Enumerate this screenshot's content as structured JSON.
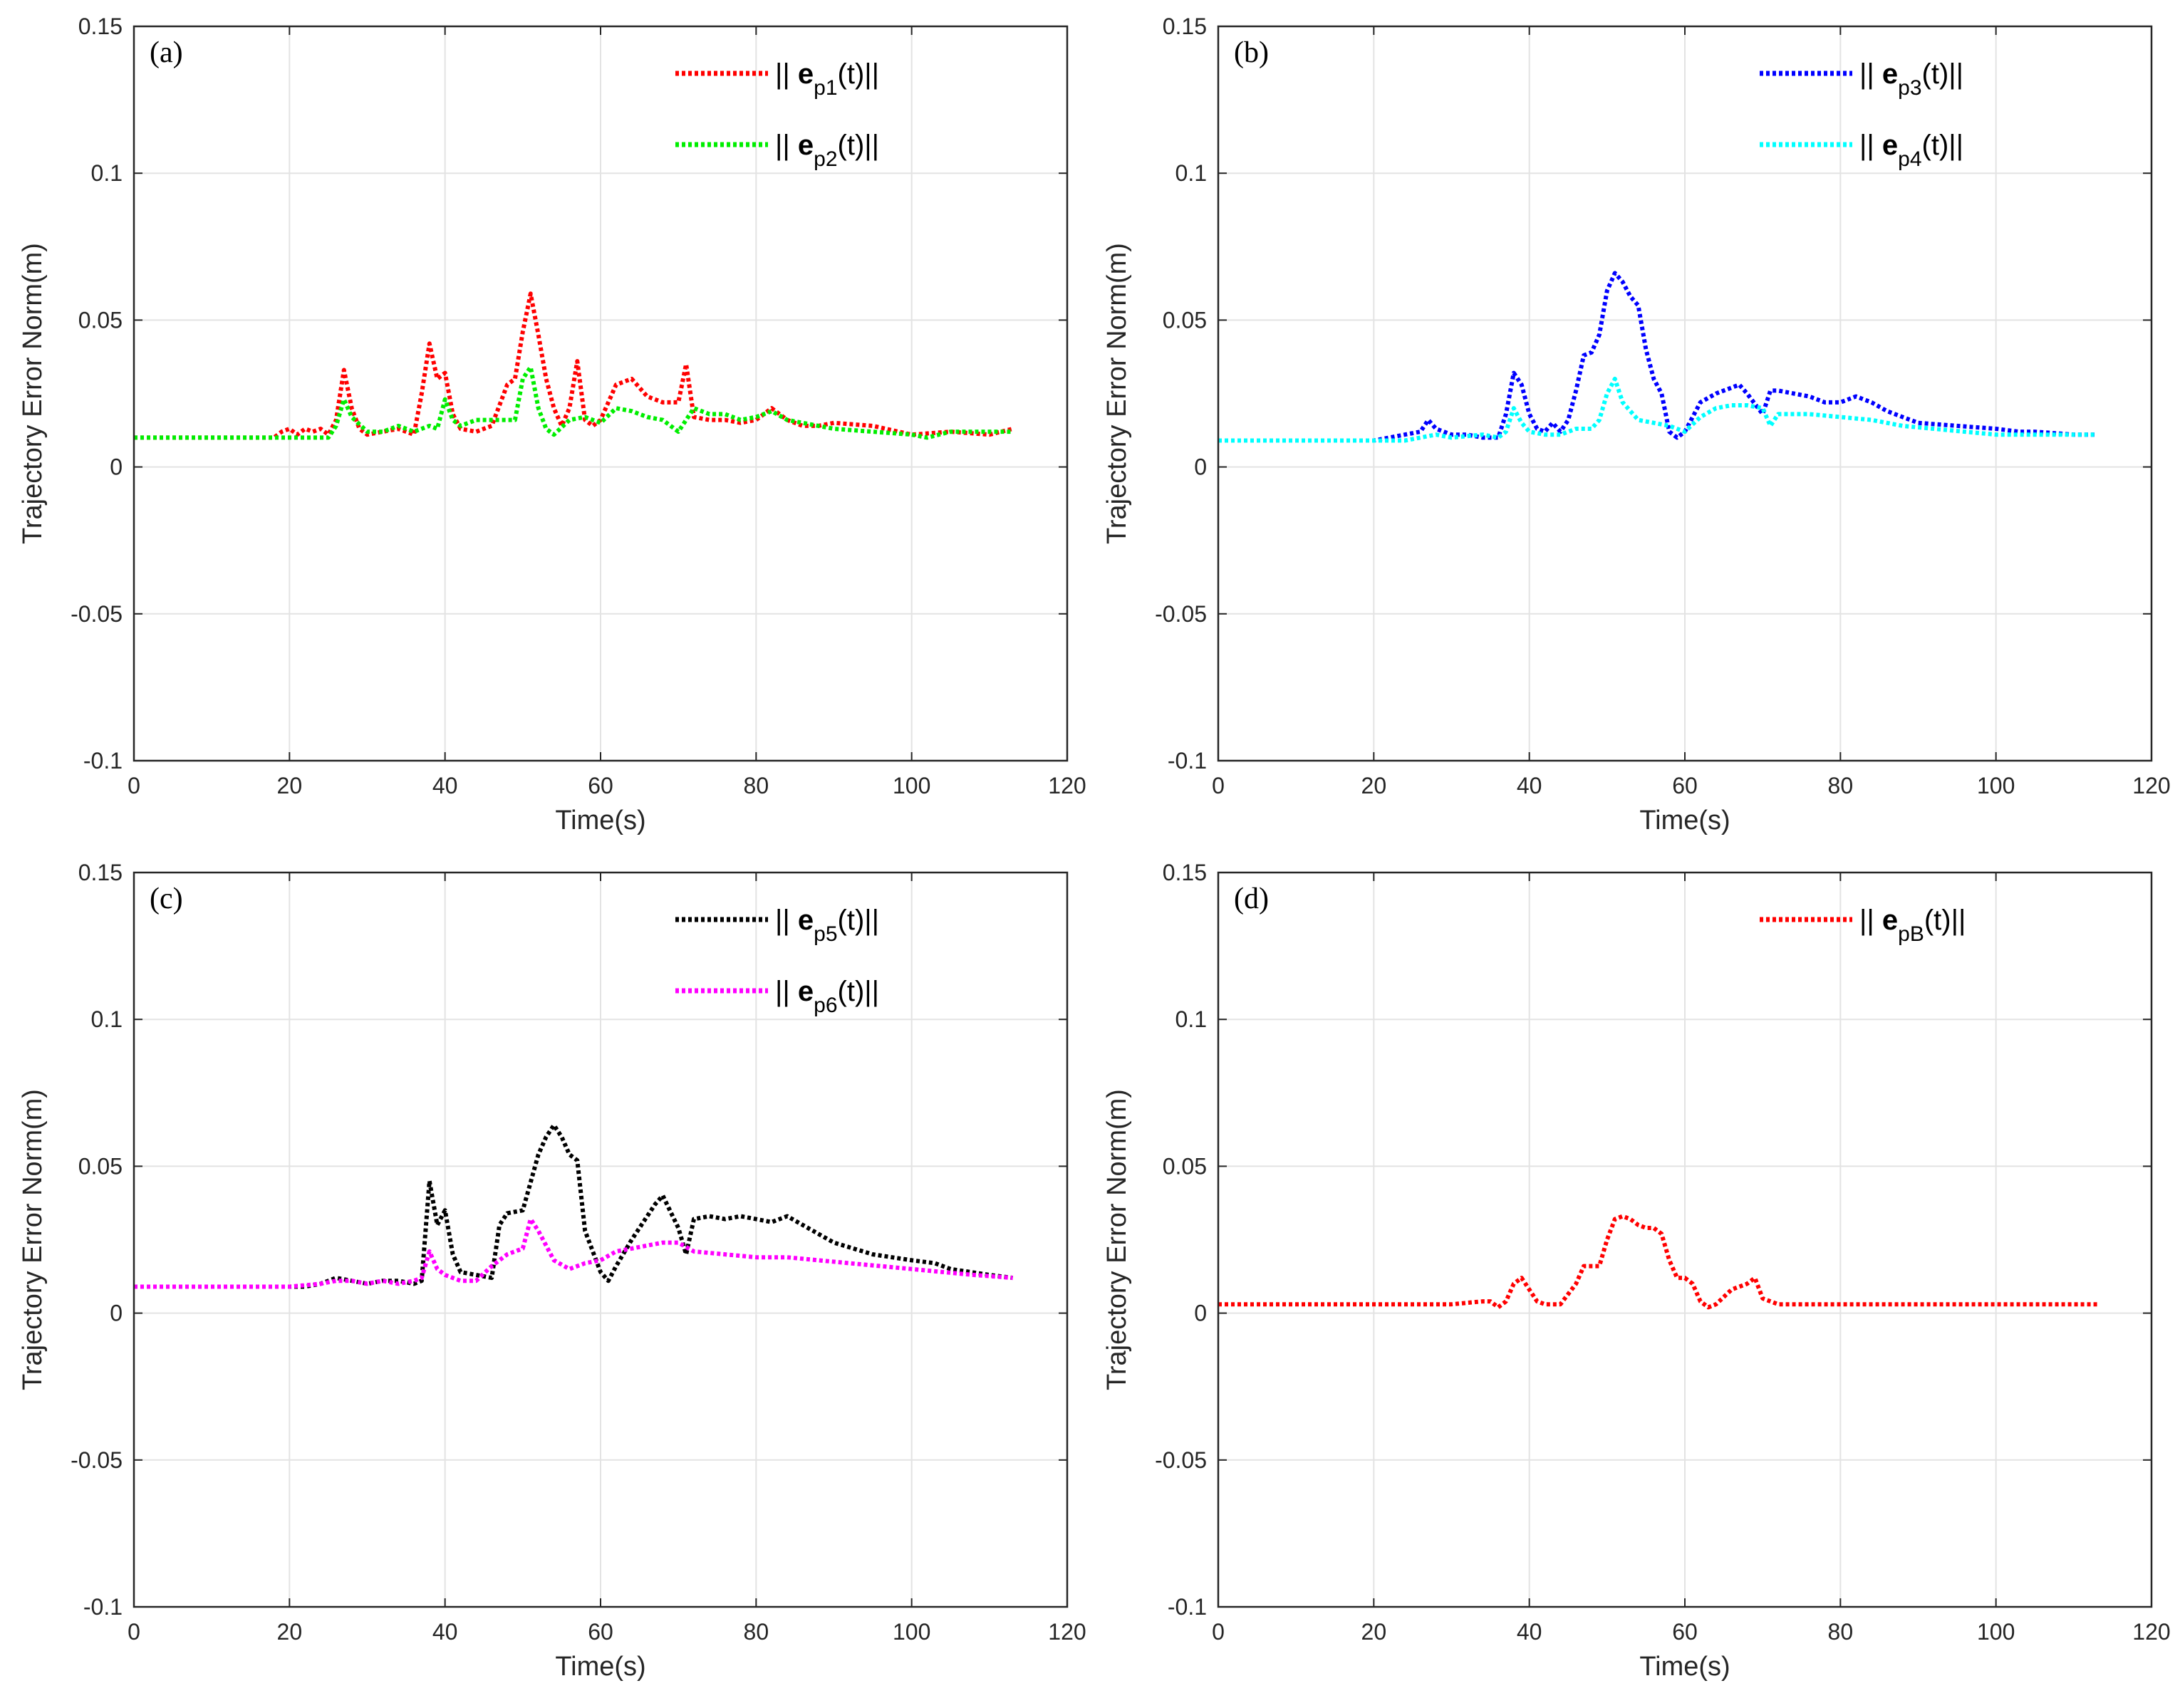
{
  "chart_data": [
    {
      "type": "line",
      "panel_label": "(a)",
      "xlabel": "Time(s)",
      "ylabel": "Trajectory Error Norm(m)",
      "xlim": [
        0,
        120
      ],
      "ylim": [
        -0.1,
        0.15
      ],
      "xticks": [
        0,
        20,
        40,
        60,
        80,
        100,
        120
      ],
      "yticks": [
        -0.1,
        -0.05,
        0,
        0.05,
        0.1,
        0.15
      ],
      "xtick_labels": [
        "0",
        "20",
        "40",
        "60",
        "80",
        "100",
        "120"
      ],
      "ytick_labels": [
        "-0.1",
        "-0.05",
        "0",
        "0.05",
        "0.1",
        "0.15"
      ],
      "grid": true,
      "legend_position": "top-right",
      "series": [
        {
          "name": "p1",
          "legend_prefix": "|| ",
          "legend_bold": "e",
          "legend_sub": "p1",
          "legend_suffix": "(t)||",
          "color": "#ff0000",
          "style": "dotted",
          "x": [
            0,
            10,
            18,
            19,
            20,
            21,
            22,
            23,
            24,
            25,
            26,
            27,
            28,
            29,
            30,
            32,
            34,
            36,
            37,
            38,
            39,
            40,
            41,
            42,
            44,
            46,
            48,
            49,
            50,
            51,
            52,
            53,
            54,
            55,
            56,
            57,
            58,
            59,
            60,
            62,
            64,
            66,
            68,
            70,
            71,
            72,
            74,
            76,
            78,
            80,
            82,
            84,
            86,
            88,
            90,
            95,
            100,
            105,
            110,
            113
          ],
          "y": [
            0.01,
            0.01,
            0.01,
            0.012,
            0.013,
            0.011,
            0.013,
            0.012,
            0.013,
            0.011,
            0.016,
            0.033,
            0.02,
            0.013,
            0.011,
            0.012,
            0.013,
            0.011,
            0.025,
            0.042,
            0.03,
            0.032,
            0.018,
            0.013,
            0.012,
            0.014,
            0.028,
            0.03,
            0.046,
            0.059,
            0.045,
            0.03,
            0.02,
            0.014,
            0.02,
            0.036,
            0.016,
            0.014,
            0.016,
            0.028,
            0.03,
            0.024,
            0.022,
            0.022,
            0.035,
            0.017,
            0.016,
            0.016,
            0.015,
            0.016,
            0.02,
            0.016,
            0.014,
            0.014,
            0.015,
            0.014,
            0.011,
            0.012,
            0.011,
            0.013
          ]
        },
        {
          "name": "p2",
          "legend_prefix": "|| ",
          "legend_bold": "e",
          "legend_sub": "p2",
          "legend_suffix": "(t)||",
          "color": "#00ee00",
          "style": "dotted",
          "x": [
            0,
            10,
            20,
            25,
            26,
            27,
            28,
            30,
            32,
            34,
            36,
            38,
            39,
            40,
            41,
            42,
            44,
            46,
            48,
            49,
            50,
            51,
            52,
            53,
            54,
            56,
            58,
            60,
            62,
            64,
            66,
            68,
            70,
            72,
            74,
            76,
            78,
            80,
            82,
            84,
            86,
            88,
            90,
            95,
            100,
            102,
            105,
            110,
            113
          ],
          "y": [
            0.01,
            0.01,
            0.01,
            0.01,
            0.014,
            0.023,
            0.017,
            0.012,
            0.012,
            0.014,
            0.012,
            0.014,
            0.013,
            0.023,
            0.016,
            0.014,
            0.016,
            0.016,
            0.016,
            0.016,
            0.03,
            0.034,
            0.02,
            0.013,
            0.011,
            0.016,
            0.017,
            0.015,
            0.02,
            0.019,
            0.017,
            0.016,
            0.012,
            0.02,
            0.018,
            0.018,
            0.016,
            0.017,
            0.019,
            0.016,
            0.015,
            0.014,
            0.013,
            0.012,
            0.011,
            0.01,
            0.012,
            0.012,
            0.012
          ]
        }
      ]
    },
    {
      "type": "line",
      "panel_label": "(b)",
      "xlabel": "Time(s)",
      "ylabel": "Trajectory Error Norm(m)",
      "xlim": [
        0,
        120
      ],
      "ylim": [
        -0.1,
        0.15
      ],
      "xticks": [
        0,
        20,
        40,
        60,
        80,
        100,
        120
      ],
      "yticks": [
        -0.1,
        -0.05,
        0,
        0.05,
        0.1,
        0.15
      ],
      "xtick_labels": [
        "0",
        "20",
        "40",
        "60",
        "80",
        "100",
        "120"
      ],
      "ytick_labels": [
        "-0.1",
        "-0.05",
        "0",
        "0.05",
        "0.1",
        "0.15"
      ],
      "grid": true,
      "legend_position": "top-right",
      "series": [
        {
          "name": "p3",
          "legend_prefix": "|| ",
          "legend_bold": "e",
          "legend_sub": "p3",
          "legend_suffix": "(t)||",
          "color": "#0000ff",
          "style": "dotted",
          "x": [
            0,
            10,
            20,
            22,
            24,
            26,
            27,
            28,
            30,
            32,
            34,
            36,
            37,
            38,
            39,
            40,
            41,
            42,
            43,
            44,
            45,
            46,
            47,
            48,
            49,
            50,
            51,
            52,
            53,
            54,
            55,
            56,
            57,
            58,
            59,
            60,
            62,
            64,
            66,
            67,
            68,
            70,
            71,
            72,
            74,
            76,
            78,
            80,
            82,
            84,
            86,
            88,
            90,
            95,
            100,
            103,
            105,
            110,
            113
          ],
          "y": [
            0.009,
            0.009,
            0.009,
            0.01,
            0.011,
            0.012,
            0.016,
            0.013,
            0.011,
            0.011,
            0.01,
            0.01,
            0.018,
            0.032,
            0.028,
            0.018,
            0.013,
            0.012,
            0.015,
            0.012,
            0.016,
            0.026,
            0.038,
            0.039,
            0.045,
            0.06,
            0.066,
            0.063,
            0.058,
            0.055,
            0.04,
            0.03,
            0.025,
            0.012,
            0.01,
            0.012,
            0.022,
            0.025,
            0.027,
            0.028,
            0.025,
            0.018,
            0.026,
            0.026,
            0.025,
            0.024,
            0.022,
            0.022,
            0.024,
            0.022,
            0.019,
            0.017,
            0.015,
            0.014,
            0.013,
            0.012,
            0.012,
            0.011,
            0.011
          ]
        },
        {
          "name": "p4",
          "legend_prefix": "|| ",
          "legend_bold": "e",
          "legend_sub": "p4",
          "legend_suffix": "(t)||",
          "color": "#00ffff",
          "style": "dotted",
          "x": [
            0,
            10,
            20,
            24,
            26,
            28,
            30,
            34,
            36,
            37,
            38,
            39,
            40,
            42,
            44,
            46,
            48,
            49,
            50,
            51,
            52,
            54,
            56,
            58,
            60,
            62,
            64,
            66,
            68,
            70,
            71,
            72,
            76,
            80,
            84,
            88,
            92,
            96,
            100,
            104,
            108,
            113
          ],
          "y": [
            0.009,
            0.009,
            0.009,
            0.009,
            0.01,
            0.011,
            0.01,
            0.011,
            0.01,
            0.012,
            0.02,
            0.015,
            0.012,
            0.011,
            0.011,
            0.013,
            0.013,
            0.016,
            0.025,
            0.03,
            0.022,
            0.016,
            0.015,
            0.014,
            0.012,
            0.017,
            0.02,
            0.021,
            0.021,
            0.02,
            0.014,
            0.018,
            0.018,
            0.017,
            0.016,
            0.014,
            0.013,
            0.012,
            0.011,
            0.011,
            0.011,
            0.011
          ]
        }
      ]
    },
    {
      "type": "line",
      "panel_label": "(c)",
      "xlabel": "Time(s)",
      "ylabel": "Trajectory Error Norm(m)",
      "xlim": [
        0,
        120
      ],
      "ylim": [
        -0.1,
        0.15
      ],
      "xticks": [
        0,
        20,
        40,
        60,
        80,
        100,
        120
      ],
      "yticks": [
        -0.1,
        -0.05,
        0,
        0.05,
        0.1,
        0.15
      ],
      "xtick_labels": [
        "0",
        "20",
        "40",
        "60",
        "80",
        "100",
        "120"
      ],
      "ytick_labels": [
        "-0.1",
        "-0.05",
        "0",
        "0.05",
        "0.1",
        "0.15"
      ],
      "grid": true,
      "legend_position": "top-right",
      "series": [
        {
          "name": "p5",
          "legend_prefix": "|| ",
          "legend_bold": "e",
          "legend_sub": "p5",
          "legend_suffix": "(t)||",
          "color": "#000000",
          "style": "dotted",
          "x": [
            0,
            10,
            20,
            22,
            24,
            26,
            28,
            30,
            32,
            34,
            36,
            37,
            38,
            39,
            40,
            41,
            42,
            44,
            46,
            47,
            48,
            50,
            52,
            53,
            54,
            55,
            56,
            57,
            58,
            60,
            61,
            62,
            64,
            66,
            67,
            68,
            70,
            71,
            72,
            74,
            76,
            78,
            80,
            82,
            84,
            86,
            88,
            90,
            95,
            100,
            103,
            105,
            110,
            113
          ],
          "y": [
            0.009,
            0.009,
            0.009,
            0.009,
            0.01,
            0.012,
            0.011,
            0.01,
            0.011,
            0.011,
            0.01,
            0.011,
            0.045,
            0.03,
            0.035,
            0.02,
            0.014,
            0.013,
            0.012,
            0.03,
            0.034,
            0.035,
            0.054,
            0.06,
            0.064,
            0.06,
            0.054,
            0.052,
            0.028,
            0.014,
            0.011,
            0.016,
            0.025,
            0.033,
            0.037,
            0.04,
            0.029,
            0.02,
            0.032,
            0.033,
            0.032,
            0.033,
            0.032,
            0.031,
            0.033,
            0.03,
            0.027,
            0.024,
            0.02,
            0.018,
            0.017,
            0.015,
            0.013,
            0.012
          ]
        },
        {
          "name": "p6",
          "legend_prefix": "|| ",
          "legend_bold": "e",
          "legend_sub": "p6",
          "legend_suffix": "(t)||",
          "color": "#ff00ff",
          "style": "dotted",
          "x": [
            0,
            10,
            20,
            24,
            26,
            28,
            30,
            32,
            34,
            36,
            37,
            38,
            39,
            40,
            42,
            44,
            46,
            48,
            50,
            51,
            52,
            54,
            56,
            58,
            60,
            62,
            64,
            66,
            68,
            70,
            72,
            76,
            80,
            84,
            88,
            92,
            96,
            100,
            104,
            108,
            113
          ],
          "y": [
            0.009,
            0.009,
            0.009,
            0.01,
            0.011,
            0.011,
            0.01,
            0.011,
            0.01,
            0.011,
            0.012,
            0.021,
            0.015,
            0.013,
            0.011,
            0.011,
            0.016,
            0.02,
            0.022,
            0.032,
            0.028,
            0.018,
            0.015,
            0.017,
            0.018,
            0.021,
            0.022,
            0.023,
            0.024,
            0.024,
            0.021,
            0.02,
            0.019,
            0.019,
            0.018,
            0.017,
            0.016,
            0.015,
            0.014,
            0.013,
            0.012
          ]
        }
      ]
    },
    {
      "type": "line",
      "panel_label": "(d)",
      "xlabel": "Time(s)",
      "ylabel": "Trajectory Error Norm(m)",
      "xlim": [
        0,
        120
      ],
      "ylim": [
        -0.1,
        0.15
      ],
      "xticks": [
        0,
        20,
        40,
        60,
        80,
        100,
        120
      ],
      "yticks": [
        -0.1,
        -0.05,
        0,
        0.05,
        0.1,
        0.15
      ],
      "xtick_labels": [
        "0",
        "20",
        "40",
        "60",
        "80",
        "100",
        "120"
      ],
      "ytick_labels": [
        "-0.1",
        "-0.05",
        "0",
        "0.05",
        "0.1",
        "0.15"
      ],
      "grid": true,
      "legend_position": "top-right",
      "series": [
        {
          "name": "pB",
          "legend_prefix": "|| ",
          "legend_bold": "e",
          "legend_sub": "pB",
          "legend_suffix": "(t)||",
          "color": "#ff0000",
          "style": "dotted",
          "x": [
            0,
            10,
            20,
            30,
            34,
            35,
            36,
            37,
            38,
            39,
            40,
            41,
            42,
            44,
            46,
            47,
            48,
            49,
            50,
            51,
            52,
            53,
            54,
            55,
            56,
            57,
            58,
            59,
            60,
            61,
            62,
            63,
            64,
            66,
            68,
            69,
            70,
            71,
            72,
            75,
            80,
            90,
            100,
            110,
            113
          ],
          "y": [
            0.003,
            0.003,
            0.003,
            0.003,
            0.004,
            0.004,
            0.002,
            0.004,
            0.01,
            0.012,
            0.008,
            0.004,
            0.003,
            0.003,
            0.01,
            0.016,
            0.016,
            0.016,
            0.025,
            0.032,
            0.033,
            0.032,
            0.03,
            0.029,
            0.029,
            0.027,
            0.018,
            0.012,
            0.012,
            0.01,
            0.004,
            0.002,
            0.003,
            0.008,
            0.01,
            0.012,
            0.005,
            0.004,
            0.003,
            0.003,
            0.003,
            0.003,
            0.003,
            0.003,
            0.003
          ]
        }
      ]
    }
  ]
}
